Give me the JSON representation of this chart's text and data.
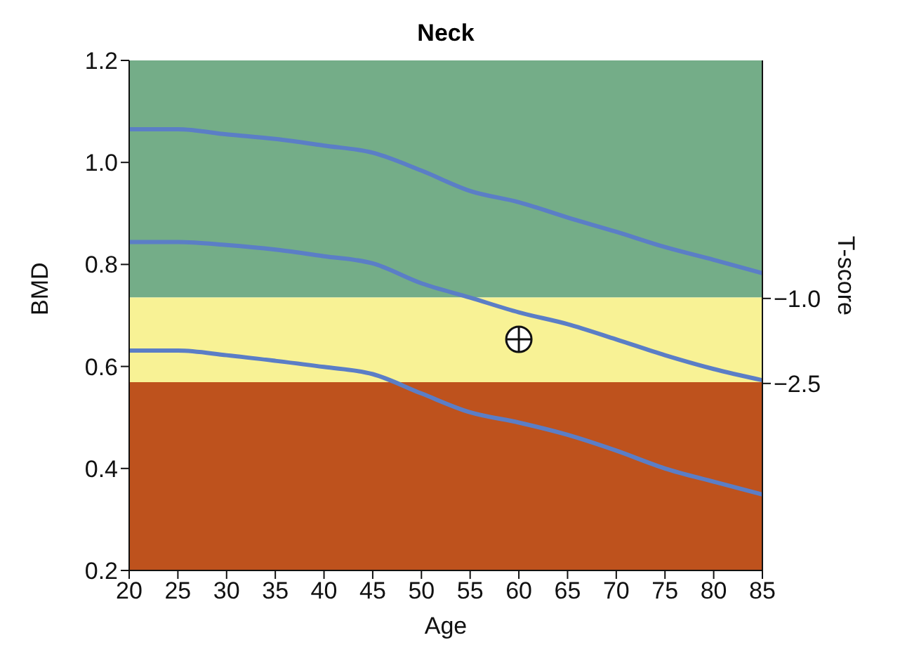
{
  "chart_data": {
    "type": "line",
    "title": "Neck",
    "xlabel": "Age",
    "ylabel": "BMD",
    "y2label": "T-score",
    "x": [
      20,
      25,
      30,
      35,
      40,
      45,
      50,
      55,
      60,
      65,
      70,
      75,
      80,
      85
    ],
    "series": [
      {
        "color": "#5b7ec6",
        "values": [
          1.065,
          1.065,
          1.055,
          1.046,
          1.033,
          1.019,
          0.984,
          0.944,
          0.922,
          0.892,
          0.864,
          0.834,
          0.809,
          0.783
        ]
      },
      {
        "color": "#5b7ec6",
        "values": [
          0.844,
          0.844,
          0.838,
          0.829,
          0.816,
          0.802,
          0.763,
          0.735,
          0.706,
          0.683,
          0.653,
          0.622,
          0.595,
          0.573
        ]
      },
      {
        "color": "#5b7ec6",
        "values": [
          0.631,
          0.631,
          0.622,
          0.611,
          0.599,
          0.585,
          0.547,
          0.51,
          0.49,
          0.466,
          0.435,
          0.4,
          0.374,
          0.349
        ]
      },
      {
        "type": "scatter",
        "color": "#ffffff",
        "marker": "circle",
        "x": [
          60
        ],
        "values": [
          0.653
        ]
      }
    ],
    "bands": [
      {
        "axis": "y",
        "from": 0.735,
        "to": 1.2,
        "color": "#74ad88"
      },
      {
        "axis": "y",
        "from": 0.569,
        "to": 0.735,
        "color": "#f8f295"
      },
      {
        "axis": "y",
        "from": 0.2,
        "to": 0.569,
        "color": "#be521d"
      }
    ],
    "xlim": [
      20,
      85
    ],
    "xticks": [
      20,
      25,
      30,
      35,
      40,
      45,
      50,
      55,
      60,
      65,
      70,
      75,
      80,
      85
    ],
    "ylim": [
      0.2,
      1.2
    ],
    "yticks": [
      0.2,
      0.4,
      0.6,
      0.8,
      {
        "value": 1,
        "label": "1.0"
      },
      1.2
    ],
    "y2lim": [
      -5.8,
      3.2
    ],
    "y2ticks": [
      {
        "value": -1,
        "label": "−1.0"
      },
      {
        "value": -2.5,
        "label": "−2.5"
      }
    ]
  }
}
